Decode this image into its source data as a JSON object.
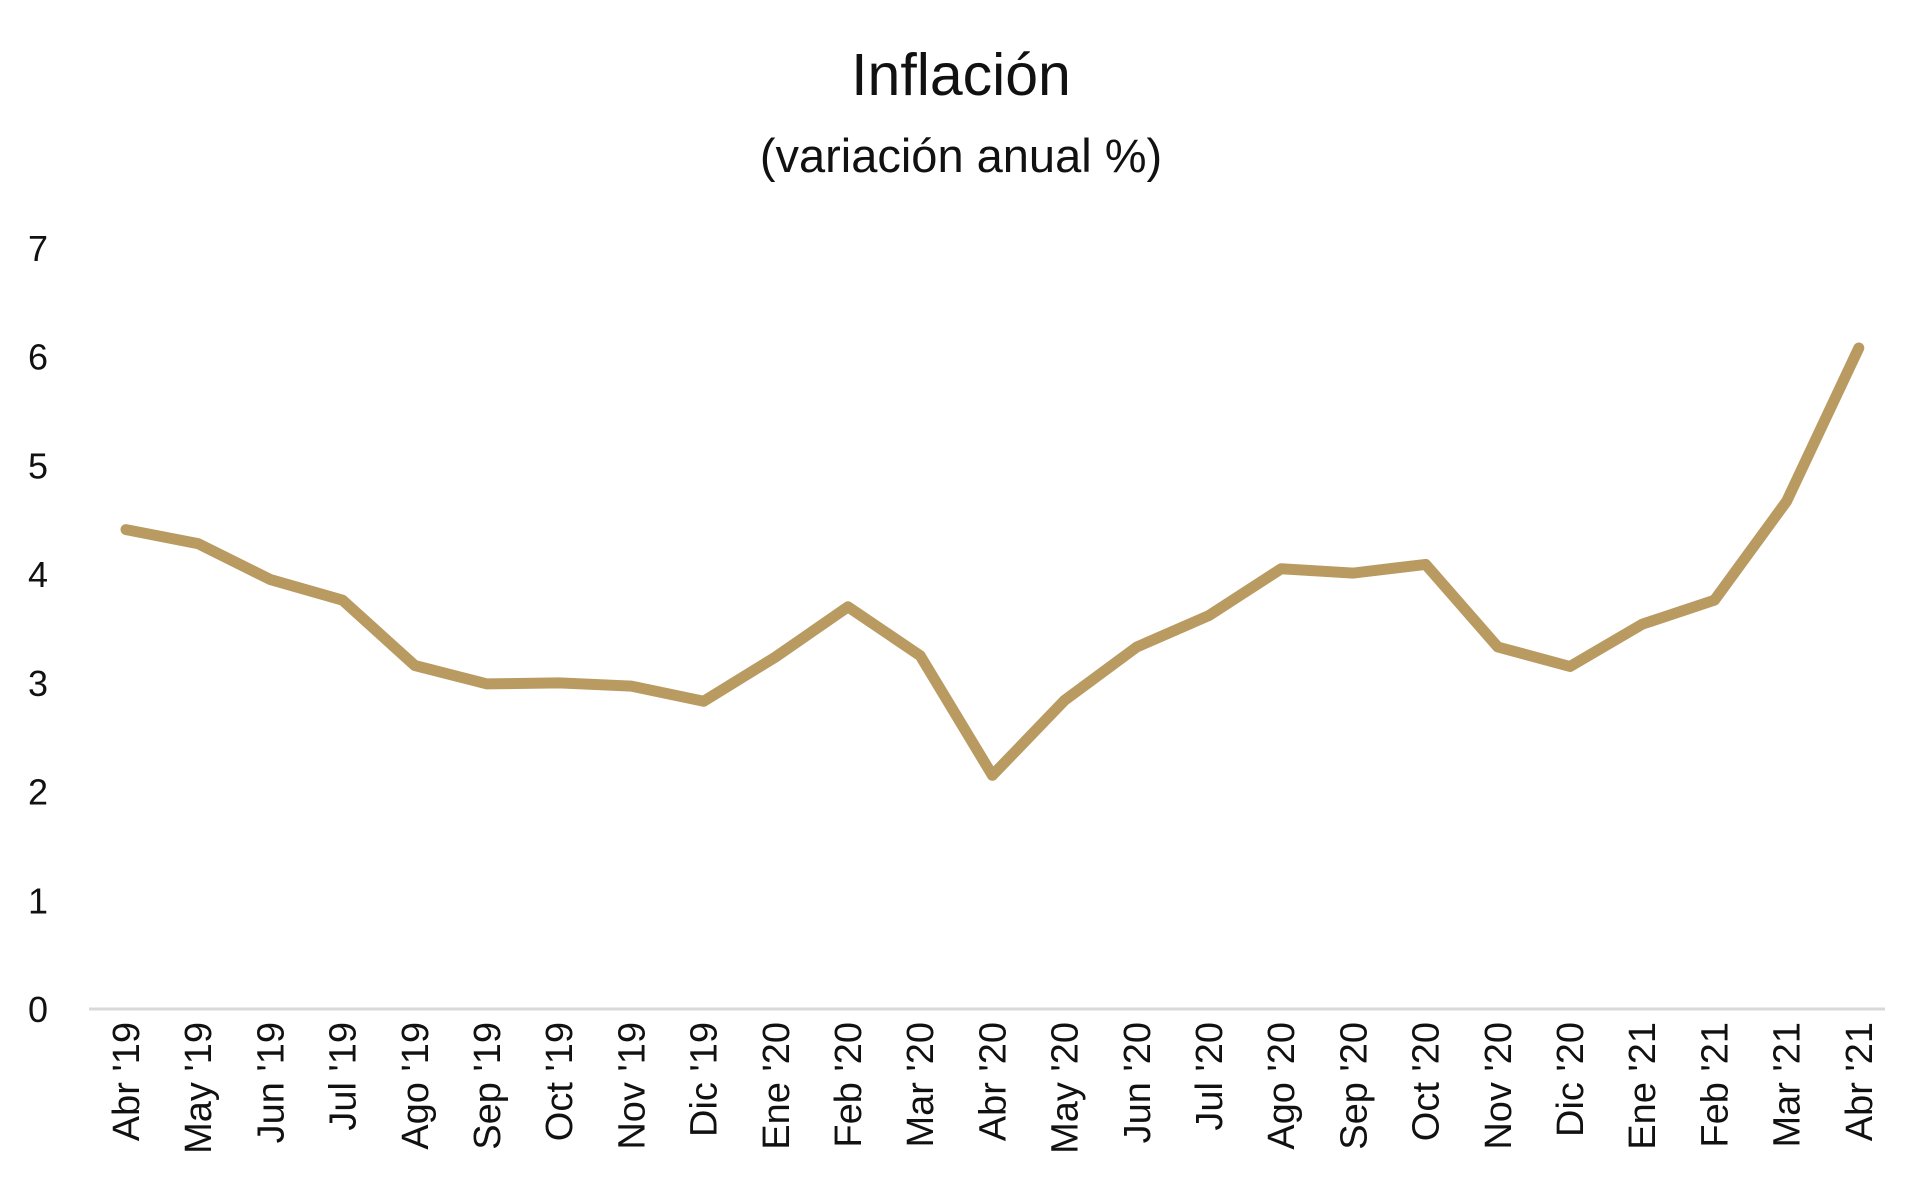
{
  "chart_data": {
    "type": "line",
    "title": "Inflación",
    "subtitle": "(variación anual %)",
    "xlabel": "",
    "ylabel": "",
    "ylim": [
      0,
      7
    ],
    "yticks": [
      "0",
      "1",
      "2",
      "3",
      "4",
      "5",
      "6",
      "7"
    ],
    "grid": false,
    "legend": "none",
    "categories": [
      "Abr '19",
      "May '19",
      "Jun '19",
      "Jul '19",
      "Ago '19",
      "Sep '19",
      "Oct '19",
      "Nov '19",
      "Dic '19",
      "Ene '20",
      "Feb '20",
      "Mar '20",
      "Abr '20",
      "May '20",
      "Jun '20",
      "Jul '20",
      "Ago '20",
      "Sep '20",
      "Oct '20",
      "Nov '20",
      "Dic '20",
      "Ene '21",
      "Feb '21",
      "Mar '21",
      "Abr '21"
    ],
    "series": [
      {
        "name": "Inflación",
        "color": "#B99B62",
        "values": [
          4.41,
          4.28,
          3.95,
          3.76,
          3.16,
          2.99,
          3.0,
          2.97,
          2.83,
          3.24,
          3.7,
          3.25,
          2.15,
          2.84,
          3.33,
          3.62,
          4.05,
          4.01,
          4.09,
          3.33,
          3.15,
          3.54,
          3.76,
          4.67,
          6.08
        ]
      }
    ]
  }
}
